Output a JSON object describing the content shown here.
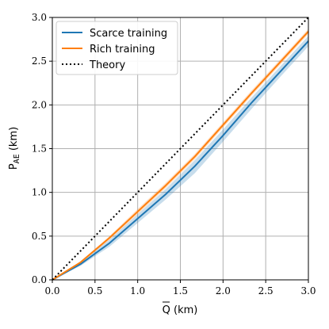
{
  "chart_data": {
    "type": "line",
    "xlabel": "Q (km)",
    "ylabel": "P",
    "ylabel_sub": "AE",
    "ylabel_unit": " (km)",
    "xlim": [
      0.0,
      3.0
    ],
    "ylim": [
      0.0,
      3.0
    ],
    "xticks": [
      "0.0",
      "0.5",
      "1.0",
      "1.5",
      "2.0",
      "2.5",
      "3.0"
    ],
    "yticks": [
      "0.0",
      "0.5",
      "1.0",
      "1.5",
      "2.0",
      "2.5",
      "3.0"
    ],
    "grid": true,
    "legend_position": "top-left",
    "series": [
      {
        "name": "Scarce training",
        "color": "#1f77b4",
        "style": "solid",
        "x": [
          0.0,
          0.33,
          0.67,
          1.0,
          1.33,
          1.67,
          2.0,
          2.33,
          2.67,
          3.0
        ],
        "y": [
          0.0,
          0.18,
          0.42,
          0.7,
          0.98,
          1.3,
          1.65,
          2.02,
          2.38,
          2.73
        ],
        "band_lower": [
          0.0,
          0.16,
          0.38,
          0.65,
          0.92,
          1.22,
          1.58,
          1.95,
          2.32,
          2.67
        ],
        "band_upper": [
          0.0,
          0.2,
          0.46,
          0.75,
          1.04,
          1.37,
          1.72,
          2.08,
          2.44,
          2.79
        ]
      },
      {
        "name": "Rich training",
        "color": "#ff7f0e",
        "style": "solid",
        "x": [
          0.0,
          0.33,
          0.67,
          1.0,
          1.33,
          1.67,
          2.0,
          2.33,
          2.67,
          3.0
        ],
        "y": [
          0.0,
          0.2,
          0.48,
          0.78,
          1.08,
          1.41,
          1.77,
          2.13,
          2.49,
          2.84
        ],
        "band_lower": [
          0.0,
          0.19,
          0.46,
          0.75,
          1.05,
          1.38,
          1.74,
          2.1,
          2.46,
          2.81
        ],
        "band_upper": [
          0.0,
          0.21,
          0.5,
          0.81,
          1.11,
          1.44,
          1.8,
          2.16,
          2.52,
          2.87
        ]
      },
      {
        "name": "Theory",
        "color": "#000000",
        "style": "dotted",
        "x": [
          0.0,
          3.0
        ],
        "y": [
          0.0,
          3.0
        ]
      }
    ]
  }
}
